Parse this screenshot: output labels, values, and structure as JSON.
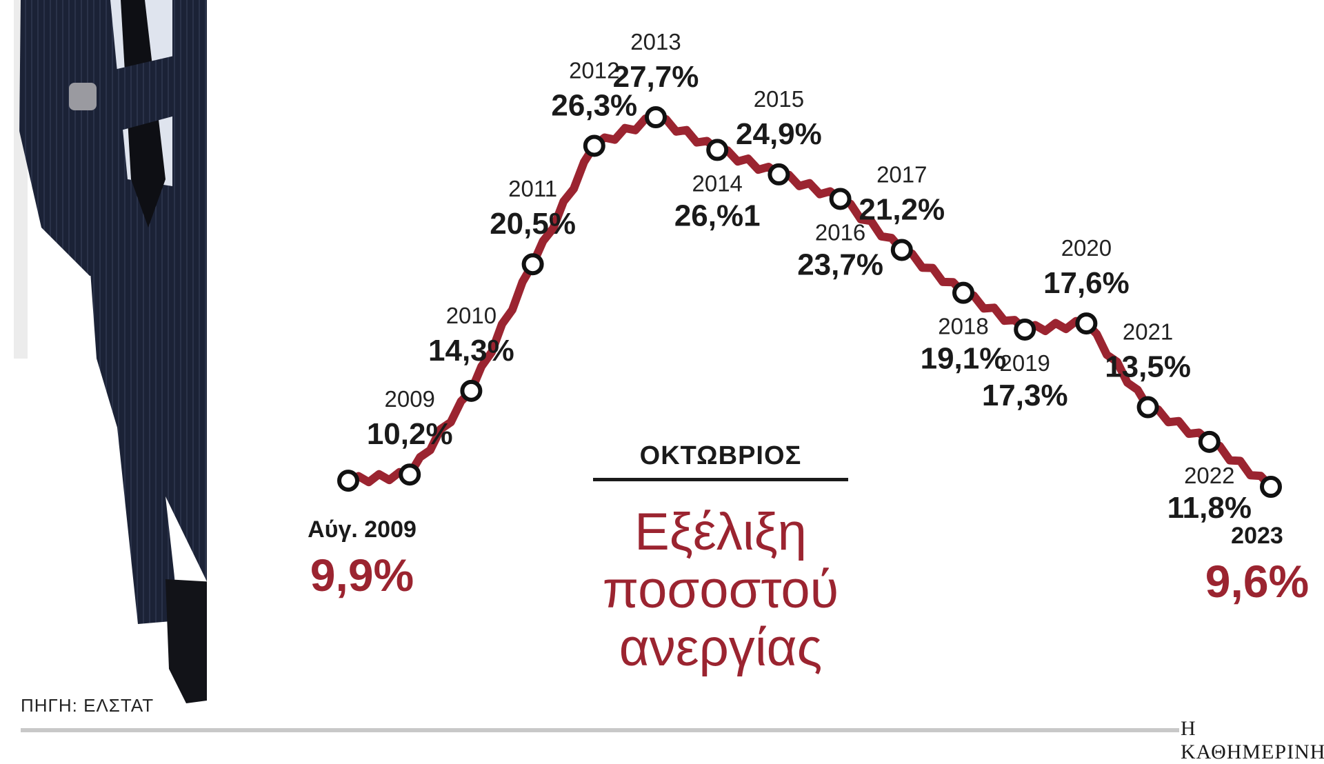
{
  "chart_data": {
    "type": "line",
    "title": "Εξέλιξη ποσοστού ανεργίας",
    "title_lines": [
      "Εξέλιξη",
      "ποσοστού",
      "ανεργίας"
    ],
    "subtitle": "ΟΚΤΩΒΡΙΟΣ",
    "source": "ΠΗΓΗ: ΕΛΣΤΑΤ",
    "line_color": "#9b2430",
    "points": [
      {
        "label": "Αύγ. 2009",
        "value": 9.9,
        "value_label": "9,9%",
        "highlight": true
      },
      {
        "label": "2009",
        "value": 10.2,
        "value_label": "10,2%"
      },
      {
        "label": "2010",
        "value": 14.3,
        "value_label": "14,3%"
      },
      {
        "label": "2011",
        "value": 20.5,
        "value_label": "20,5%"
      },
      {
        "label": "2012",
        "value": 26.3,
        "value_label": "26,3%"
      },
      {
        "label": "2013",
        "value": 27.7,
        "value_label": "27,7%"
      },
      {
        "label": "2014",
        "value": 26.1,
        "value_label": "26,%1"
      },
      {
        "label": "2015",
        "value": 24.9,
        "value_label": "24,9%"
      },
      {
        "label": "2016",
        "value": 23.7,
        "value_label": "23,7%"
      },
      {
        "label": "2017",
        "value": 21.2,
        "value_label": "21,2%"
      },
      {
        "label": "2018",
        "value": 19.1,
        "value_label": "19,1%"
      },
      {
        "label": "2019",
        "value": 17.3,
        "value_label": "17,3%"
      },
      {
        "label": "2020",
        "value": 17.6,
        "value_label": "17,6%"
      },
      {
        "label": "2021",
        "value": 13.5,
        "value_label": "13,5%"
      },
      {
        "label": "2022",
        "value": 11.8,
        "value_label": "11,8%"
      },
      {
        "label": "2023",
        "value": 9.6,
        "value_label": "9,6%",
        "highlight": true
      }
    ]
  },
  "brand": "Η ΚΑΘΗΜΕΡΙΝΗ"
}
